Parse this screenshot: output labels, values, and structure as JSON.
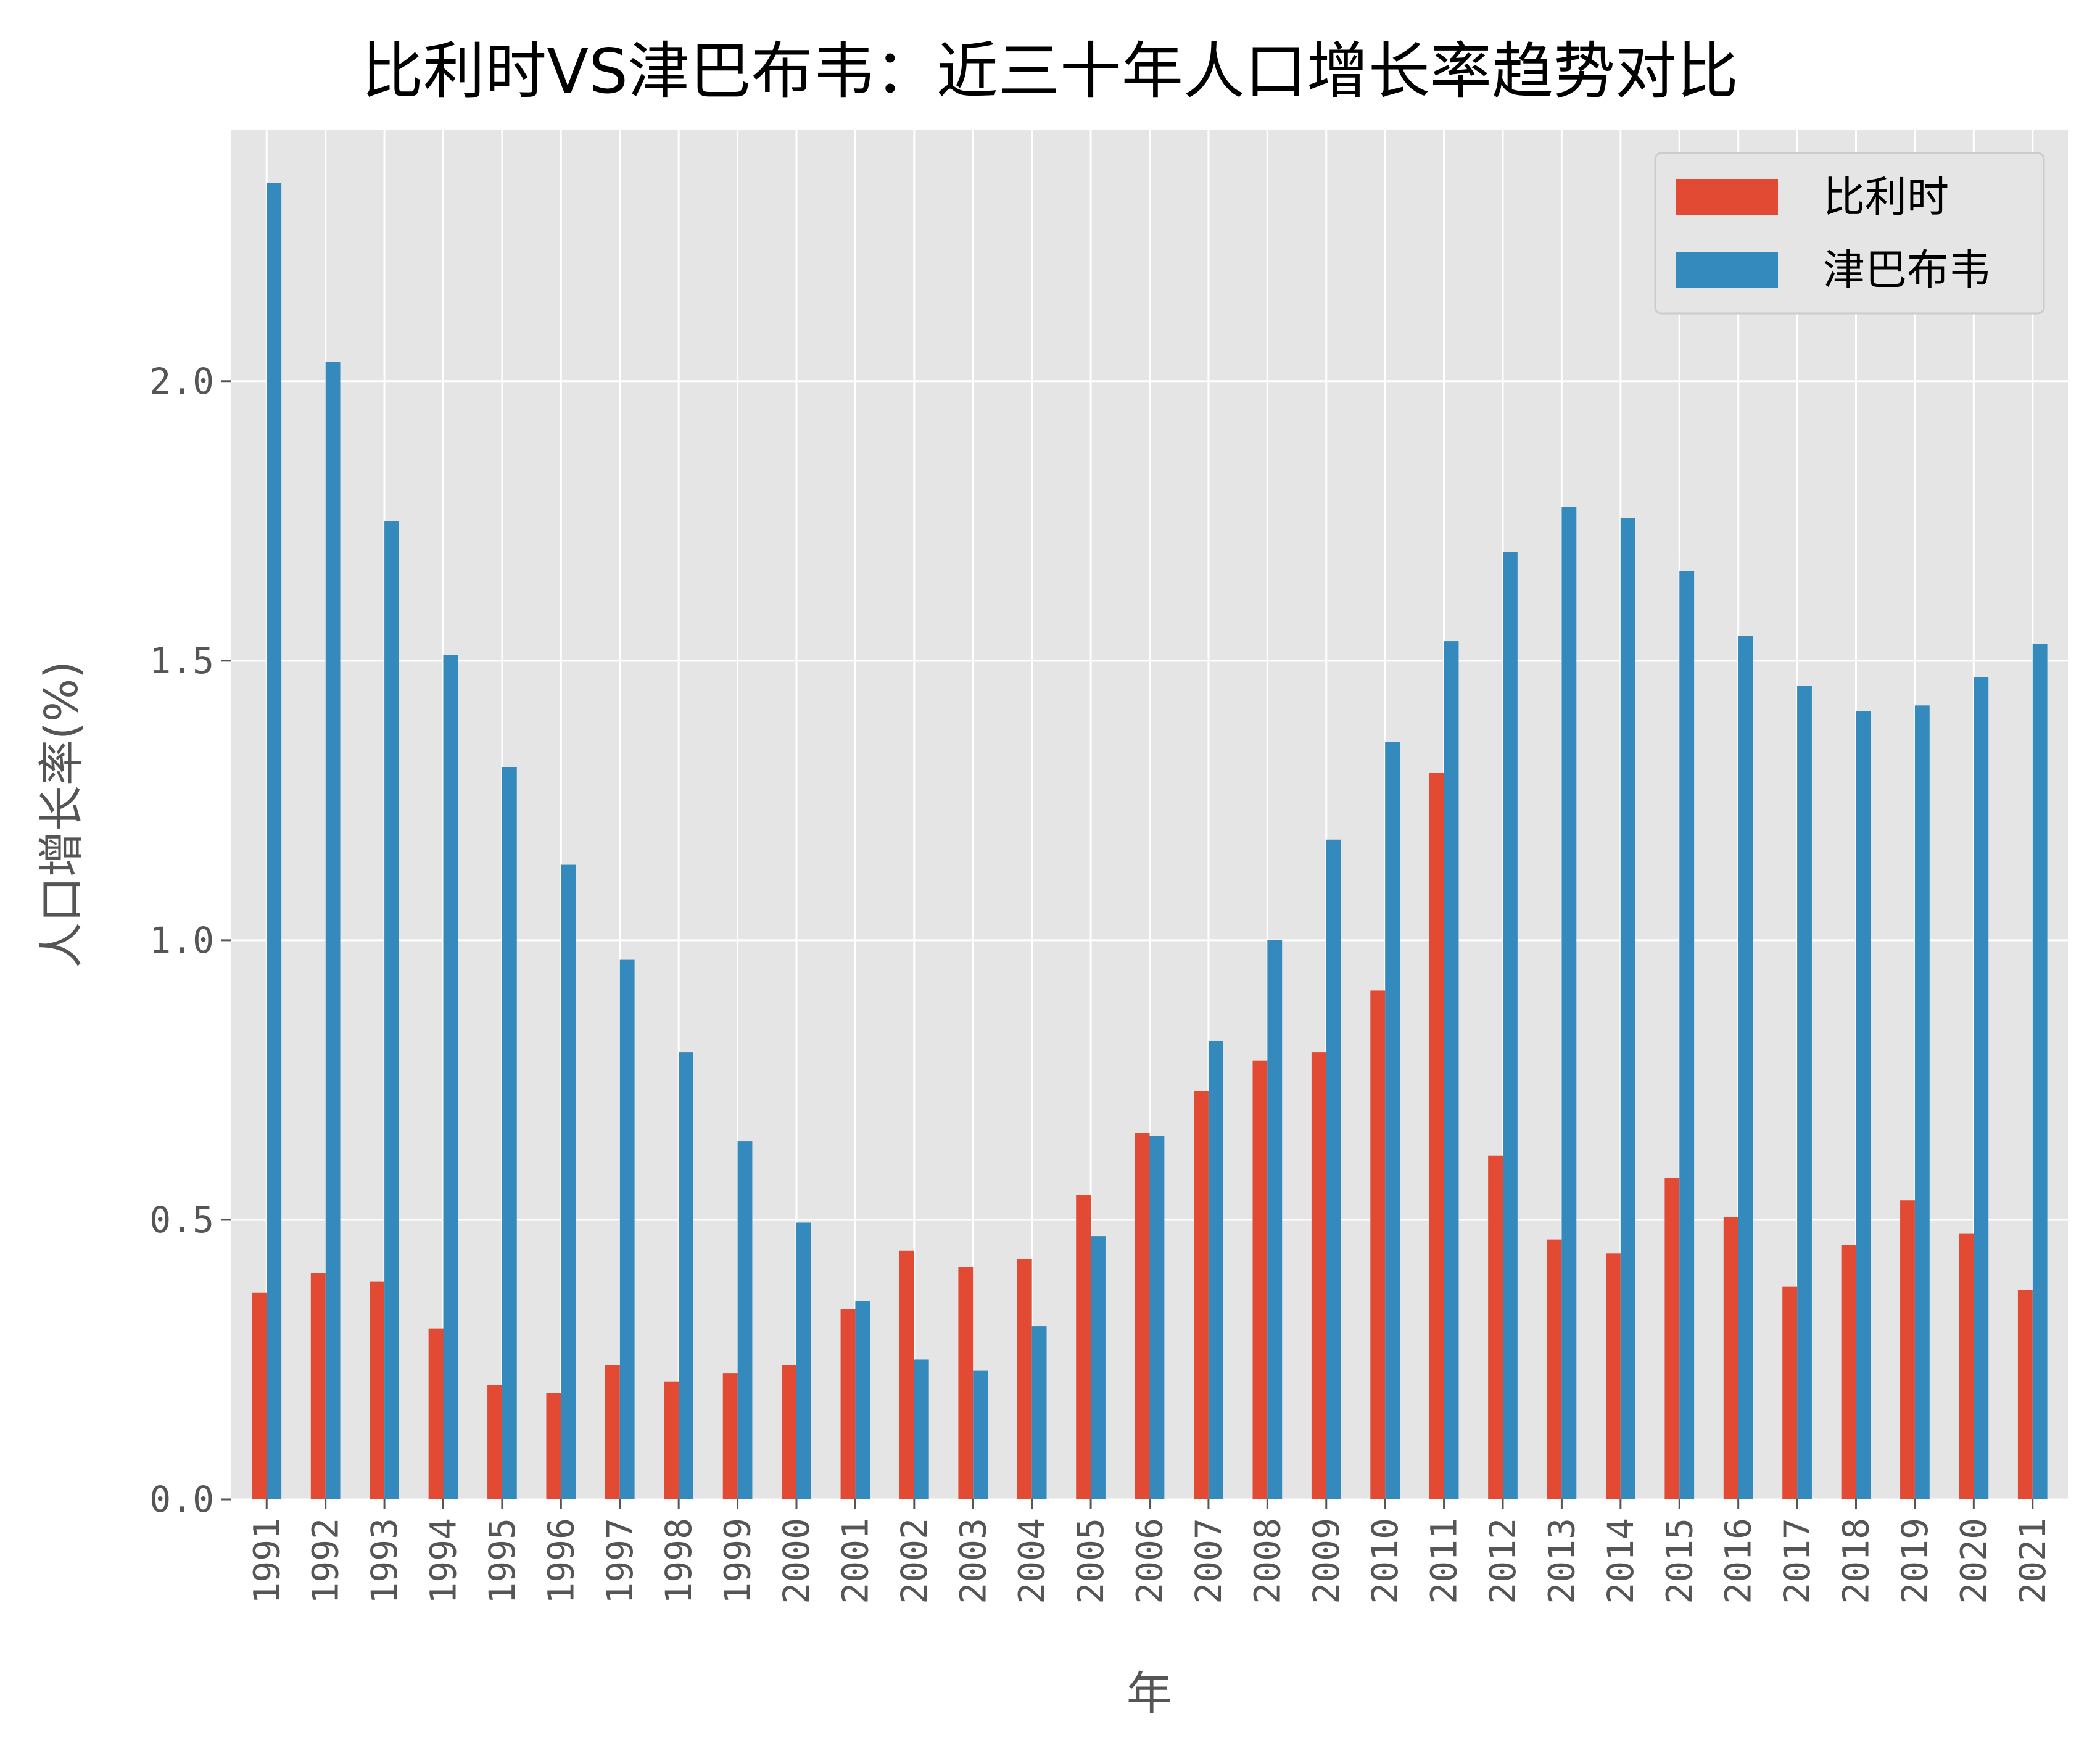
{
  "chart_data": {
    "type": "bar",
    "title": "比利时VS津巴布韦：近三十年人口增长率趋势对比",
    "xlabel": "年",
    "ylabel": "人口增长率(%)",
    "ylim": [
      0,
      2.45
    ],
    "yticks": [
      "0.0",
      "0.5",
      "1.0",
      "1.5",
      "2.0"
    ],
    "grid": true,
    "legend_position": "top-right",
    "categories": [
      "1991",
      "1992",
      "1993",
      "1994",
      "1995",
      "1996",
      "1997",
      "1998",
      "1999",
      "2000",
      "2001",
      "2002",
      "2003",
      "2004",
      "2005",
      "2006",
      "2007",
      "2008",
      "2009",
      "2010",
      "2011",
      "2012",
      "2013",
      "2014",
      "2015",
      "2016",
      "2017",
      "2018",
      "2019",
      "2020",
      "2021"
    ],
    "series": [
      {
        "name": "比利时",
        "color": "#E24A33",
        "values": [
          0.37,
          0.405,
          0.39,
          0.305,
          0.205,
          0.19,
          0.24,
          0.21,
          0.225,
          0.24,
          0.34,
          0.445,
          0.415,
          0.43,
          0.545,
          0.655,
          0.73,
          0.785,
          0.8,
          0.91,
          1.3,
          0.615,
          0.465,
          0.44,
          0.575,
          0.505,
          0.38,
          0.455,
          0.535,
          0.475,
          0.375
        ]
      },
      {
        "name": "津巴布韦",
        "color": "#348ABD",
        "values": [
          2.355,
          2.035,
          1.75,
          1.51,
          1.31,
          1.135,
          0.965,
          0.8,
          0.64,
          0.495,
          0.355,
          0.25,
          0.23,
          0.31,
          0.47,
          0.65,
          0.82,
          1.0,
          1.18,
          1.355,
          1.535,
          1.695,
          1.775,
          1.755,
          1.66,
          1.545,
          1.455,
          1.41,
          1.42,
          1.47,
          1.53
        ]
      }
    ]
  }
}
